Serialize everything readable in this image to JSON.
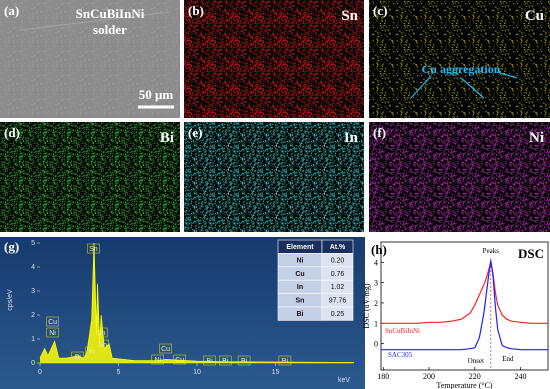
{
  "sem": {
    "label": "(a)",
    "sample_line1": "SnCuBiInNi",
    "sample_line2": "solder",
    "scale_bar": "50 μm"
  },
  "maps": [
    {
      "label": "(b)",
      "element": "Sn",
      "color": "#d01818"
    },
    {
      "label": "(c)",
      "element": "Cu",
      "color": "#d8d020",
      "annotation": "Cu aggregation"
    },
    {
      "label": "(d)",
      "element": "Bi",
      "color": "#30c030"
    },
    {
      "label": "(e)",
      "element": "In",
      "color": "#30d8d8"
    },
    {
      "label": "(f)",
      "element": "Ni",
      "color": "#c030c0"
    }
  ],
  "chart_data": [
    {
      "type": "line",
      "label": "(g)",
      "xlabel": "keV",
      "ylabel": "cps/eV",
      "xlim": [
        0,
        20
      ],
      "xticks": [
        0,
        5,
        10,
        15
      ],
      "ylim": [
        0,
        5
      ],
      "yticks": [
        0,
        1,
        2,
        3,
        4,
        5
      ],
      "x": [
        0,
        0.3,
        0.5,
        0.93,
        1.2,
        1.7,
        2.4,
        2.8,
        3.0,
        3.29,
        3.44,
        3.6,
        3.66,
        3.8,
        3.9,
        4.1,
        4.4,
        4.6,
        6,
        7.5,
        8.0,
        10,
        12,
        20
      ],
      "values": [
        0.2,
        0.6,
        0.3,
        0.9,
        0.2,
        0.2,
        0.3,
        0.2,
        0.5,
        1.8,
        5,
        1.2,
        3.3,
        0.8,
        2.0,
        0.6,
        0.8,
        0.2,
        0.1,
        0.1,
        0.15,
        0.08,
        0.05,
        0.02
      ],
      "color": "#ffff00",
      "peak_labels": [
        {
          "label": "Sn",
          "x": 3.4
        },
        {
          "label": "Cu",
          "x": 0.8
        },
        {
          "label": "Ni",
          "x": 0.8
        },
        {
          "label": "Bi",
          "x": 2.4
        },
        {
          "label": "In",
          "x": 3.3
        },
        {
          "label": "Sn",
          "x": 3.9
        },
        {
          "label": "Sn",
          "x": 4.0
        },
        {
          "label": "Ni",
          "x": 7.5
        },
        {
          "label": "Cu",
          "x": 8.0
        },
        {
          "label": "Cu",
          "x": 8.9
        },
        {
          "label": "Bi",
          "x": 10.8
        },
        {
          "label": "Bi",
          "x": 11.8
        },
        {
          "label": "Bi",
          "x": 13.0
        },
        {
          "label": "Bi",
          "x": 15.6
        }
      ],
      "table": {
        "header": [
          "Element",
          "At.%"
        ],
        "rows": [
          [
            "Ni",
            "0.20"
          ],
          [
            "Cu",
            "0.76"
          ],
          [
            "In",
            "1.02"
          ],
          [
            "Sn",
            "97.76"
          ],
          [
            "Bi",
            "0.25"
          ]
        ]
      }
    },
    {
      "type": "line",
      "label": "(h)",
      "title": "DSC",
      "xlabel": "Temperature (°C)",
      "ylabel": "DSC (uV/mg)",
      "xlim": [
        179,
        252
      ],
      "xticks": [
        180,
        200,
        220,
        240
      ],
      "ylim": [
        -1.3,
        5
      ],
      "yticks": [
        0,
        1,
        2,
        3,
        4
      ],
      "x": [
        179,
        185,
        190,
        195,
        200,
        205,
        210,
        214,
        218,
        220,
        222,
        224,
        225,
        226,
        227,
        228,
        229,
        230,
        232,
        234,
        236,
        240,
        245,
        252
      ],
      "series": [
        {
          "name": "SnCuBiInNi",
          "color": "#ff2020",
          "values": [
            1.0,
            1.0,
            1.0,
            1.0,
            1.05,
            1.05,
            1.1,
            1.2,
            1.5,
            1.9,
            2.4,
            2.9,
            3.2,
            3.6,
            4.0,
            3.4,
            2.5,
            1.9,
            1.4,
            1.2,
            1.1,
            1.05,
            1.0,
            1.0
          ]
        },
        {
          "name": "SAC305",
          "color": "#2020ff",
          "values": [
            -0.3,
            -0.3,
            -0.3,
            -0.3,
            -0.3,
            -0.3,
            -0.3,
            -0.3,
            -0.25,
            -0.2,
            0.3,
            1.5,
            2.4,
            3.3,
            4.1,
            3.3,
            1.8,
            0.7,
            -0.1,
            -0.2,
            -0.25,
            -0.3,
            -0.3,
            -0.3
          ]
        }
      ],
      "marker_x": 227,
      "annotations": [
        "Peaks",
        "Onset",
        "End"
      ]
    }
  ]
}
